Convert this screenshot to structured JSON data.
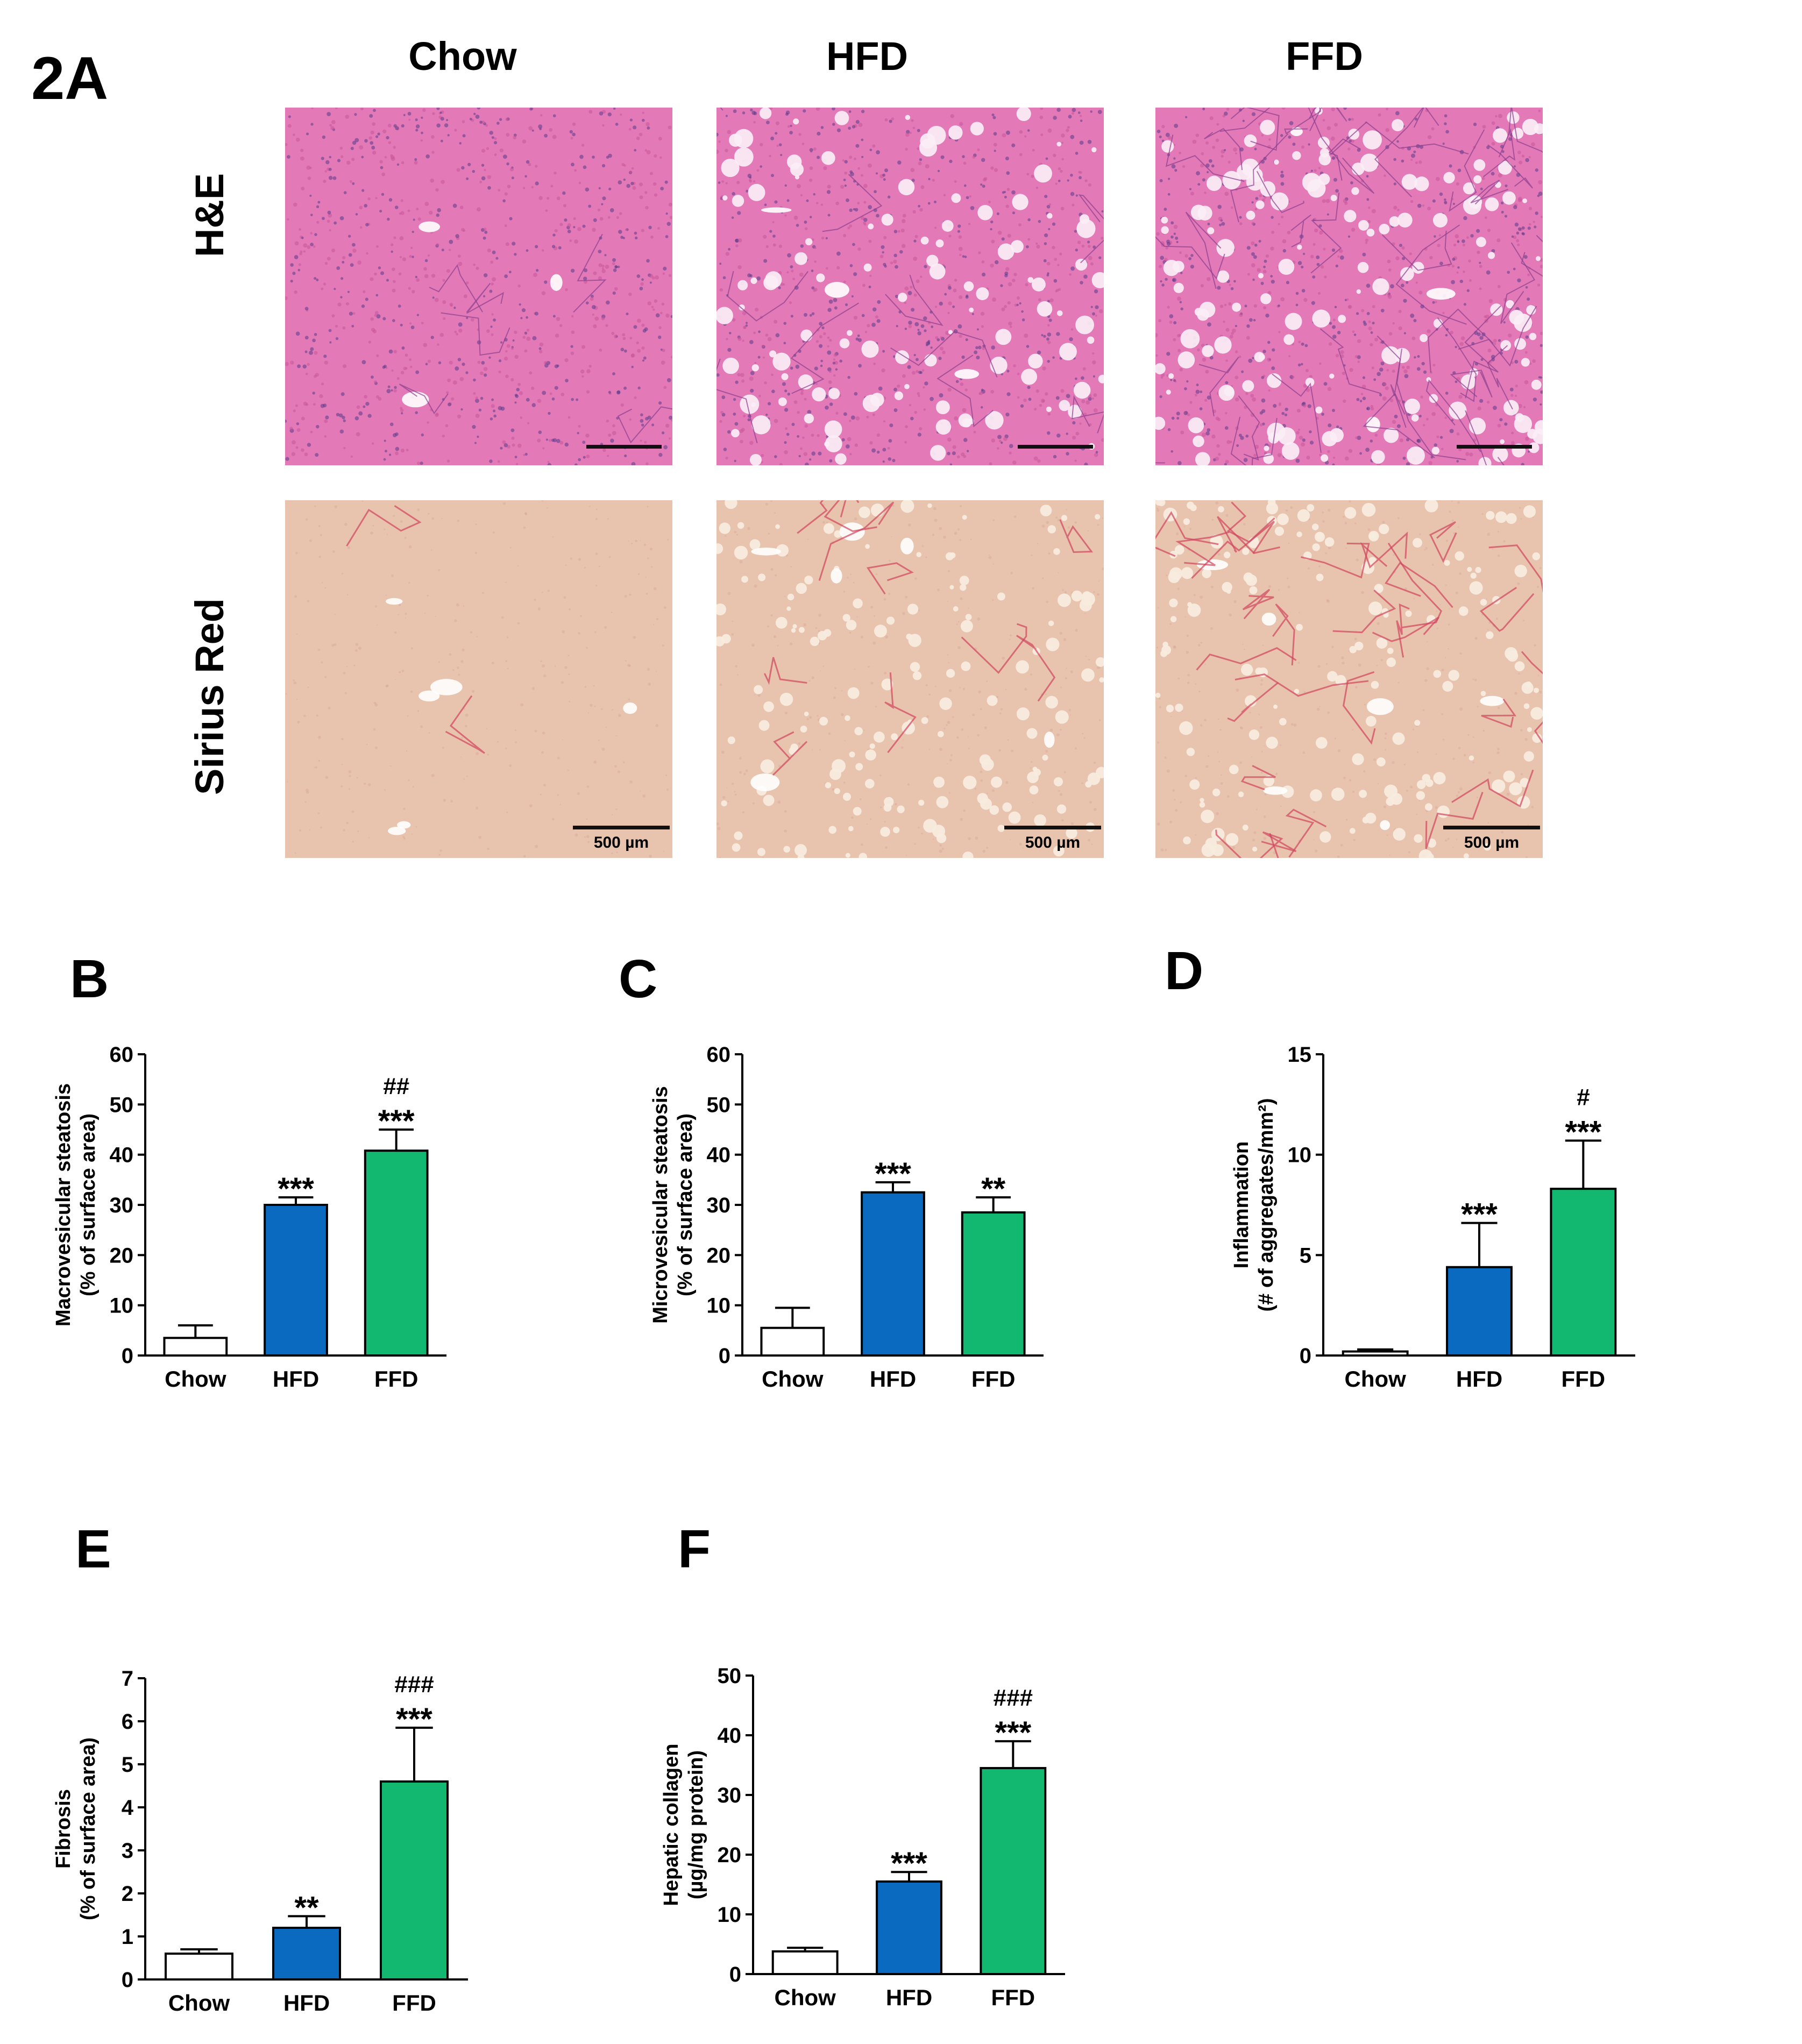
{
  "figure_label": "2A",
  "panel_letters": [
    "B",
    "C",
    "D",
    "E",
    "F"
  ],
  "columns": [
    "Chow",
    "HFD",
    "FFD"
  ],
  "rows": [
    "H&E",
    "Sirius Red"
  ],
  "scale_bar_label": "500 µm",
  "colors": {
    "chow": "#ffffff",
    "hfd": "#0a6ac0",
    "ffd": "#12b86f",
    "he_background": "#e37ab7",
    "sirius_background": "#e8c4ae"
  },
  "chart_data": [
    {
      "id": "B",
      "type": "bar",
      "categories": [
        "Chow",
        "HFD",
        "FFD"
      ],
      "values": [
        3.5,
        30,
        40.8
      ],
      "errors": [
        2.5,
        1.5,
        4.2
      ],
      "annotations": [
        [],
        [
          "***"
        ],
        [
          "##",
          "***"
        ]
      ],
      "ylabel_lines": [
        "Macrovesicular steatosis",
        "(% of surface area)"
      ],
      "ylim": [
        0,
        60
      ],
      "yticks": [
        0,
        10,
        20,
        30,
        40,
        50,
        60
      ]
    },
    {
      "id": "C",
      "type": "bar",
      "categories": [
        "Chow",
        "HFD",
        "FFD"
      ],
      "values": [
        5.5,
        32.5,
        28.5
      ],
      "errors": [
        4,
        2,
        3
      ],
      "annotations": [
        [],
        [
          "***"
        ],
        [
          "**"
        ]
      ],
      "ylabel_lines": [
        "Microvesicular steatosis",
        "(% of surface area)"
      ],
      "ylim": [
        0,
        60
      ],
      "yticks": [
        0,
        10,
        20,
        30,
        40,
        50,
        60
      ]
    },
    {
      "id": "D",
      "type": "bar",
      "categories": [
        "Chow",
        "HFD",
        "FFD"
      ],
      "values": [
        0.2,
        4.4,
        8.3
      ],
      "errors": [
        0.1,
        2.2,
        2.4
      ],
      "annotations": [
        [],
        [
          "***"
        ],
        [
          "#",
          "***"
        ]
      ],
      "ylabel_lines": [
        "Inflammation",
        "(# of aggregates/mm²)"
      ],
      "ylim": [
        0,
        15
      ],
      "yticks": [
        0,
        5,
        10,
        15
      ]
    },
    {
      "id": "E",
      "type": "bar",
      "categories": [
        "Chow",
        "HFD",
        "FFD"
      ],
      "values": [
        0.6,
        1.2,
        4.6
      ],
      "errors": [
        0.1,
        0.27,
        1.25
      ],
      "annotations": [
        [],
        [
          "**"
        ],
        [
          "###",
          "***"
        ]
      ],
      "ylabel_lines": [
        "Fibrosis",
        "(% of surface area)"
      ],
      "ylim": [
        0,
        7
      ],
      "yticks": [
        0,
        1,
        2,
        3,
        4,
        5,
        6,
        7
      ]
    },
    {
      "id": "F",
      "type": "bar",
      "categories": [
        "Chow",
        "HFD",
        "FFD"
      ],
      "values": [
        3.8,
        15.5,
        34.5
      ],
      "errors": [
        0.6,
        1.6,
        4.5
      ],
      "annotations": [
        [],
        [
          "***"
        ],
        [
          "###",
          "***"
        ]
      ],
      "ylabel_lines": [
        "Hepatic collagen",
        "(µg/mg protein)"
      ],
      "ylim": [
        0,
        50
      ],
      "yticks": [
        0,
        10,
        20,
        30,
        40,
        50
      ]
    }
  ]
}
